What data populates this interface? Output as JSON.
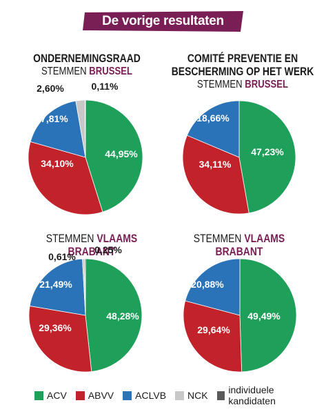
{
  "header": {
    "title": "De vorige resultaten"
  },
  "colors": {
    "ACV": "#1fa05a",
    "ABVV": "#c22229",
    "ACLVB": "#2a73b8",
    "NCK": "#c8c8c8",
    "individuele kandidaten": "#5a5a5a",
    "banner": "#7a1f55",
    "highlight": "#7a1f55"
  },
  "legend": [
    {
      "key": "ACV",
      "label": "ACV"
    },
    {
      "key": "ABVV",
      "label": "ABVV"
    },
    {
      "key": "ACLVB",
      "label": "ACLVB"
    },
    {
      "key": "NCK",
      "label": "NCK"
    },
    {
      "key": "individuele kandidaten",
      "label": "individuele kandidaten"
    }
  ],
  "charts": {
    "c1": {
      "line1": "ONDERNEMINGSRAAD",
      "sub_prefix": "STEMMEN",
      "sub_location": "BRUSSEL"
    },
    "c2": {
      "line1": "COMITÉ PREVENTIE EN",
      "line2": "BESCHERMING OP HET WERK",
      "sub_prefix": "STEMMEN",
      "sub_location": "BRUSSEL"
    },
    "c3": {
      "sub_prefix": "STEMMEN",
      "sub_location": "VLAAMS BRABANT"
    },
    "c4": {
      "sub_prefix": "STEMMEN",
      "sub_location": "VLAAMS BRABANT"
    }
  },
  "chart_data": [
    {
      "type": "pie",
      "title": "ONDERNEMINGSRAAD STEMMEN BRUSSEL",
      "categories": [
        "ACV",
        "ABVV",
        "ACLVB",
        "NCK",
        "individuele kandidaten"
      ],
      "values": [
        44.95,
        34.1,
        17.81,
        2.6,
        0.11
      ],
      "labels": [
        "44,95%",
        "34,10%",
        "17,81%",
        "2,60%",
        "0,11%"
      ]
    },
    {
      "type": "pie",
      "title": "COMITÉ PREVENTIE EN BESCHERMING OP HET WERK STEMMEN BRUSSEL",
      "categories": [
        "ACV",
        "ABVV",
        "ACLVB"
      ],
      "values": [
        47.23,
        34.11,
        18.66
      ],
      "labels": [
        "47,23%",
        "34,11%",
        "18,66%"
      ]
    },
    {
      "type": "pie",
      "title": "STEMMEN VLAAMS BRABANT",
      "categories": [
        "ACV",
        "ABVV",
        "ACLVB",
        "NCK",
        "individuele kandidaten"
      ],
      "values": [
        48.28,
        29.36,
        21.49,
        0.61,
        0.25
      ],
      "labels": [
        "48,28%",
        "29,36%",
        "21,49%",
        "0,61%",
        "0,25%"
      ]
    },
    {
      "type": "pie",
      "title": "STEMMEN VLAAMS BRABANT",
      "categories": [
        "ACV",
        "ABVV",
        "ACLVB"
      ],
      "values": [
        49.49,
        29.64,
        20.88
      ],
      "labels": [
        "49,49%",
        "29,64%",
        "20,88%"
      ]
    }
  ]
}
